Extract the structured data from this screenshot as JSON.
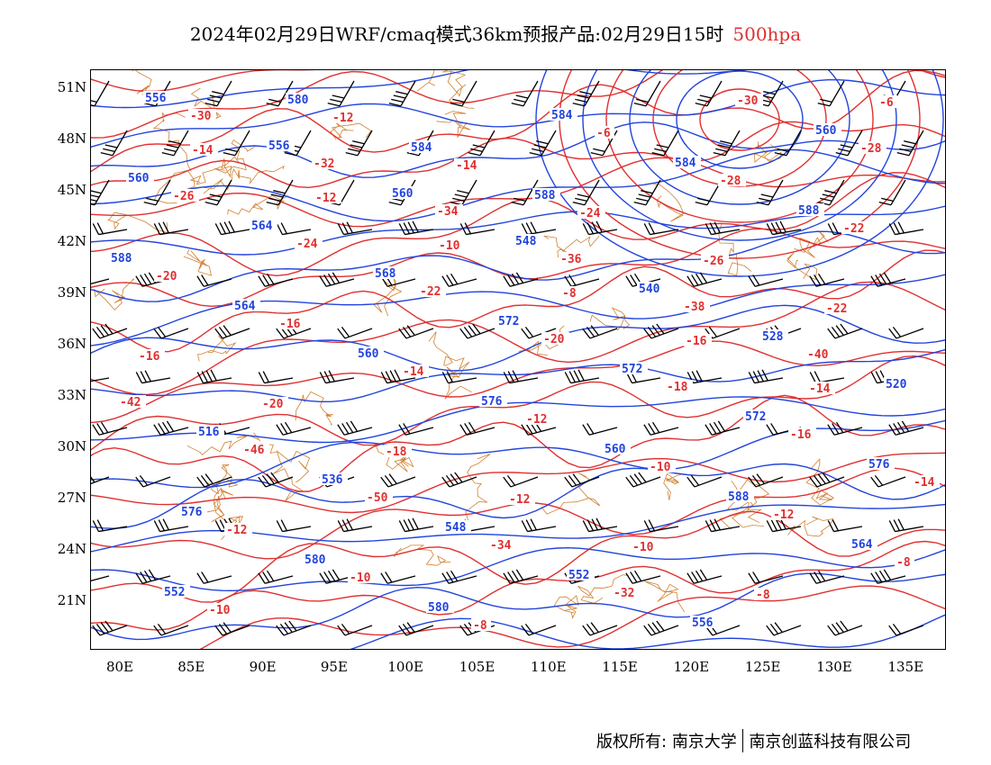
{
  "title": {
    "main": "2024年02月29日WRF/cmaq模式36km预报产品:02月29日15时",
    "level": "500hpa"
  },
  "colors": {
    "height_contour": "#2244dd",
    "temperature_contour": "#e03030",
    "border": "#d08030",
    "wind_barb": "#000000"
  },
  "axes": {
    "lat_ticks": [
      "51N",
      "48N",
      "45N",
      "42N",
      "39N",
      "36N",
      "33N",
      "30N",
      "27N",
      "24N",
      "21N"
    ],
    "lon_ticks": [
      "80E",
      "85E",
      "90E",
      "95E",
      "100E",
      "105E",
      "110E",
      "115E",
      "120E",
      "125E",
      "130E",
      "135E"
    ]
  },
  "contour_labels": {
    "height": [
      "556",
      "556",
      "560",
      "548",
      "540",
      "528",
      "520",
      "516",
      "536",
      "548",
      "552",
      "556",
      "560",
      "560",
      "564",
      "568",
      "572",
      "572",
      "572",
      "576",
      "576",
      "580",
      "580",
      "584",
      "584",
      "588",
      "588",
      "564",
      "560",
      "576",
      "560",
      "588",
      "564",
      "552",
      "580",
      "584",
      "588"
    ],
    "temperature": [
      "-30",
      "-32",
      "-34",
      "-36",
      "-38",
      "-40",
      "-42",
      "-46",
      "-50",
      "-34",
      "-32",
      "-30",
      "-28",
      "-26",
      "-24",
      "-22",
      "-20",
      "-18",
      "-16",
      "-14",
      "-12",
      "-10",
      "-8",
      "-6",
      "-28",
      "-22",
      "-20",
      "-16",
      "-14",
      "-12",
      "-10",
      "-12",
      "-8",
      "-10",
      "-12",
      "-14",
      "-24",
      "-26",
      "-22",
      "-16",
      "-20",
      "-18",
      "-12",
      "-10",
      "-8",
      "-6",
      "-14",
      "-12",
      "-10",
      "-8",
      "-16",
      "-14"
    ]
  },
  "footer": {
    "copyright_label": "版权所有:",
    "org1": "南京大学",
    "org2": "南京创蓝科技有限公司"
  }
}
